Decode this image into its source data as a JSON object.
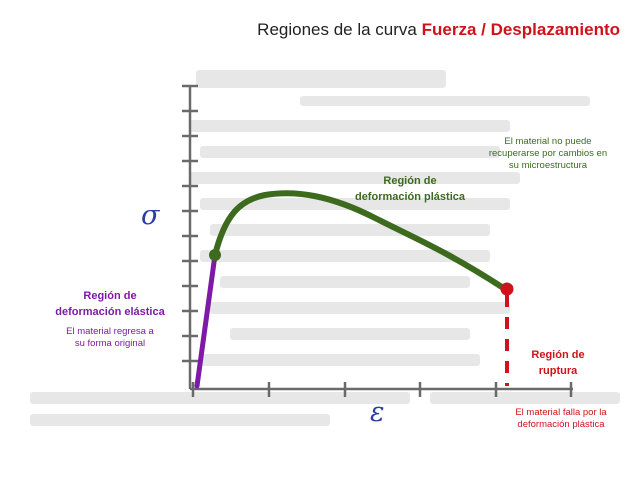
{
  "title": {
    "prefix": "Regiones de la curva ",
    "highlight": "Fuerza / Desplazamiento"
  },
  "axes": {
    "y_symbol": "σ",
    "x_symbol": "ε"
  },
  "regions": {
    "elastic": {
      "heading_1": "Región de",
      "heading_2": "deformación elástica",
      "note_1": "El material regresa a",
      "note_2": "su forma original"
    },
    "plastic": {
      "heading_1": "Región de",
      "heading_2": "deformación plástica",
      "note_1": "El material no puede",
      "note_2": "recuperarse por cambios en",
      "note_3": "su microestructura"
    },
    "rupture": {
      "heading_1": "Región de",
      "heading_2": "ruptura",
      "note_1": "El material falla por la",
      "note_2": "deformación plástica"
    }
  },
  "colors": {
    "elastic": "#7e1aa6",
    "plastic": "#3d6b1e",
    "rupture": "#d0121b",
    "symbols": "#2b3da6"
  }
}
